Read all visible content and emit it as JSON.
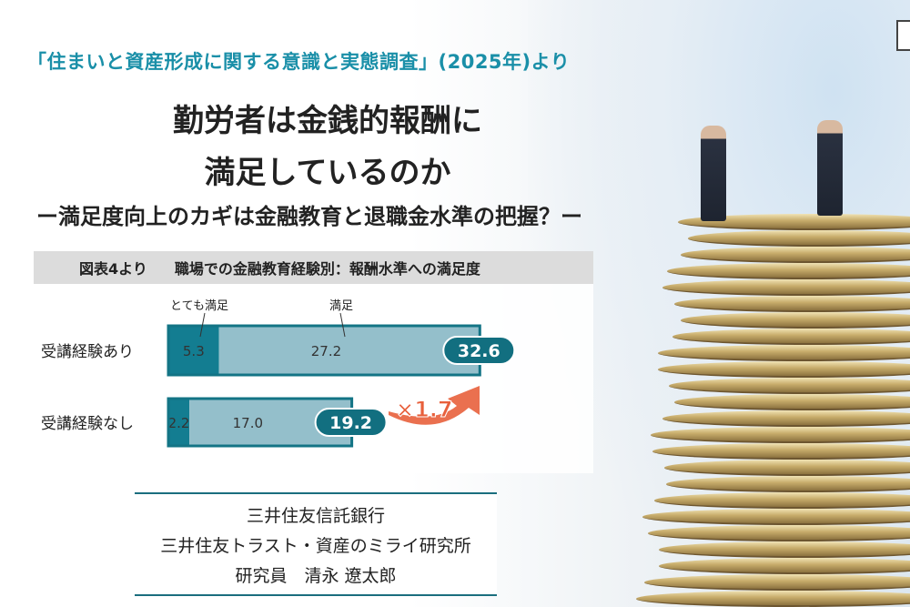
{
  "header": {
    "source": "「住まいと資産形成に関する意識と実態調査」(2025年)より",
    "title_line1": "勤労者は金銭的報酬に",
    "title_line2": "満足しているのか",
    "subtitle": "ー満足度向上のカギは金融教育と退職金水準の把握？ー"
  },
  "chart_data": {
    "type": "bar",
    "orientation": "horizontal",
    "stacked": true,
    "figure_label": "図表4より",
    "title": "職場での金融教育経験別：報酬水準への満足度",
    "categories": [
      "受講経験あり",
      "受講経験なし"
    ],
    "series": [
      {
        "name": "とても満足",
        "values": [
          5.3,
          2.2
        ],
        "color": "#137d91"
      },
      {
        "name": "満足",
        "values": [
          27.2,
          17.0
        ],
        "color": "#94bfcb"
      }
    ],
    "totals": [
      32.6,
      19.2
    ],
    "annotation": "×1.7",
    "colors": {
      "border": "#137485",
      "total_badge": "#126f80",
      "arrow": "#e8603c"
    }
  },
  "author": {
    "line1": "三井住友信託銀行",
    "line2": "三井住友トラスト・資産のミライ研究所",
    "line3": "研究員　清永 遼太郎"
  }
}
